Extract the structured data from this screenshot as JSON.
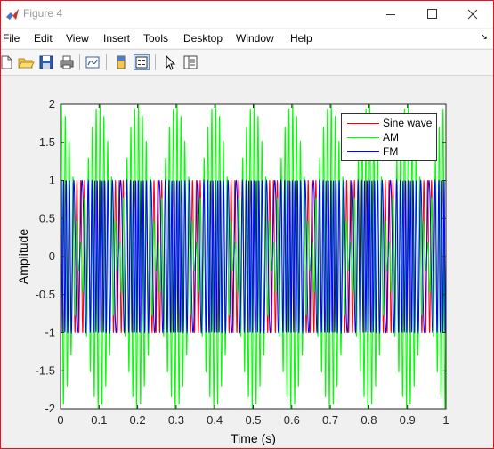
{
  "window": {
    "title": "Figure 4",
    "icon": "matlab-icon",
    "controls": [
      "minimize-icon",
      "maximize-icon",
      "close-icon"
    ]
  },
  "menu": {
    "items": [
      "File",
      "Edit",
      "View",
      "Insert",
      "Tools",
      "Desktop",
      "Window",
      "Help"
    ],
    "dock_icon": "dock-arrow-icon"
  },
  "toolbar": {
    "icons": [
      "new-figure-icon",
      "open-file-icon",
      "save-icon",
      "print-icon",
      "link-plot-icon",
      "colorbar-icon",
      "legend-icon",
      "edit-plot-icon",
      "property-inspector-icon"
    ]
  },
  "colors": {
    "sine": "#ff0000",
    "am": "#00ff00",
    "fm": "#0000ff",
    "close_border": "#e81123"
  },
  "chart_data": {
    "type": "line",
    "title": "",
    "xlabel": "Time (s)",
    "ylabel": "Amplitude",
    "xlim": [
      0,
      1
    ],
    "ylim": [
      -2,
      2
    ],
    "xticks": [
      0,
      0.1,
      0.2,
      0.3,
      0.4,
      0.5,
      0.6,
      0.7,
      0.8,
      0.9,
      1
    ],
    "yticks": [
      -2,
      -1.5,
      -1,
      -0.5,
      0,
      0.5,
      1,
      1.5,
      2
    ],
    "xtick_labels": [
      "0",
      "0.1",
      "0.2",
      "0.3",
      "0.4",
      "0.5",
      "0.6",
      "0.7",
      "0.8",
      "0.9",
      "1"
    ],
    "ytick_labels": [
      "-2",
      "-1.5",
      "-1",
      "-0.5",
      "0",
      "0.5",
      "1",
      "1.5",
      "2"
    ],
    "grid": false,
    "legend_position": "top-right",
    "series": [
      {
        "name": "Sine wave",
        "color": "#ff0000",
        "amplitude": 1,
        "frequency_hz": 100
      },
      {
        "name": "AM",
        "color": "#00ff00",
        "envelope_peak": 2,
        "envelope_frequency_hz": 10,
        "carrier_frequency_hz": 100
      },
      {
        "name": "FM",
        "color": "#0000ff",
        "amplitude": 1,
        "center_frequency_hz": 100
      }
    ]
  }
}
